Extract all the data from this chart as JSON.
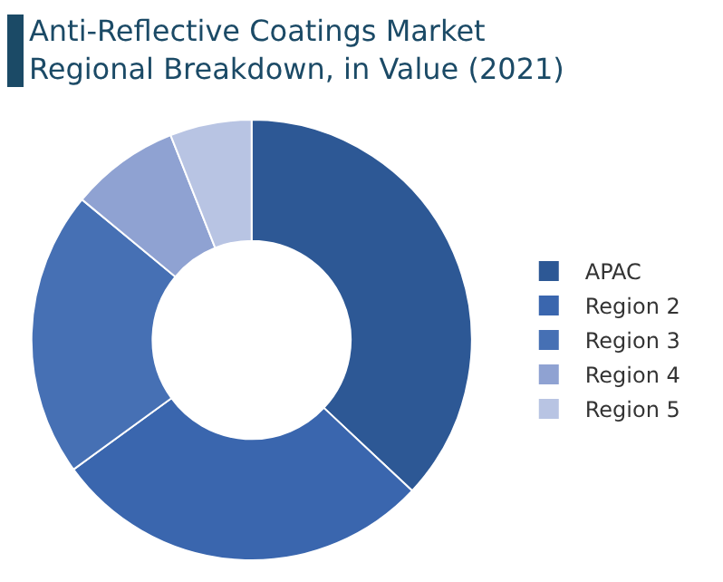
{
  "chart_data": {
    "type": "donut",
    "title": "Anti-Reflective Coatings Market\nRegional Breakdown, in Value (2021)",
    "categories": [
      "APAC",
      "Region 2",
      "Region 3",
      "Region 4",
      "Region 5"
    ],
    "values": [
      37,
      28,
      21,
      8,
      6
    ],
    "colors": [
      "#2d5895",
      "#3a66ae",
      "#4670b4",
      "#8fa2d2",
      "#b8c4e3"
    ],
    "legend": "right"
  }
}
